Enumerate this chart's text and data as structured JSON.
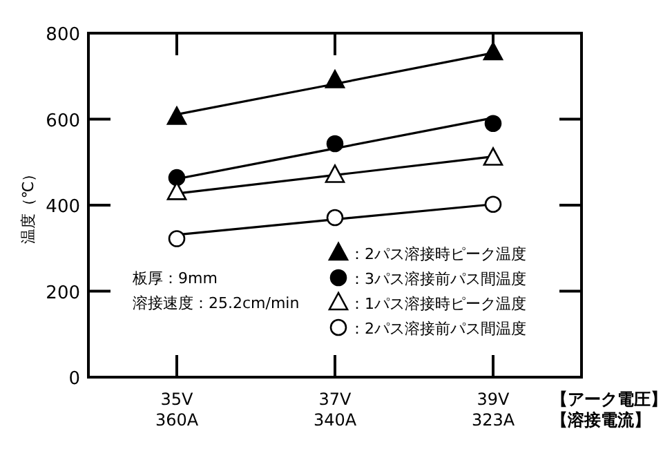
{
  "chart_data": {
    "type": "line",
    "ylabel": "温度（℃）",
    "xlabel": "【アーク電圧】【溶接電流】",
    "categories": [
      "35V\n360A",
      "37V\n340A",
      "39V\n323A"
    ],
    "ylim": [
      0,
      800
    ],
    "yticks": [
      0,
      200,
      400,
      600,
      800
    ],
    "grid": false,
    "legend": "bottom right",
    "annotations": [
      "板厚：9mm",
      "溶接速度：25.2cm/min"
    ],
    "series": [
      {
        "name": "：2パス溶接時ピーク温度",
        "type": "scatter",
        "marker": "triangle",
        "color": "#000000",
        "values": [
          605,
          690,
          755
        ]
      },
      {
        "name": "：3パス溶接前パス間温度",
        "type": "scatter",
        "marker": "circle",
        "color": "#000000",
        "values": [
          464,
          543,
          590
        ]
      },
      {
        "name": "：1パス溶接時ピーク温度",
        "type": "scatter",
        "marker": "triangle",
        "color": "#ffffff",
        "values": [
          430,
          470,
          510
        ]
      },
      {
        "name": "：2パス溶接前パス間温度",
        "type": "scatter",
        "marker": "circle",
        "color": "#ffffff",
        "values": [
          322,
          371,
          402
        ]
      },
      {
        "marker": "none",
        "color": "#000000",
        "values": [
          611,
          682,
          754
        ]
      },
      {
        "marker": "none",
        "color": "#000000",
        "values": [
          461,
          532,
          603
        ]
      },
      {
        "marker": "none",
        "color": "#000000",
        "values": [
          427,
          470,
          513
        ]
      },
      {
        "marker": "none",
        "color": "#000000",
        "values": [
          331,
          367,
          402
        ]
      }
    ]
  }
}
